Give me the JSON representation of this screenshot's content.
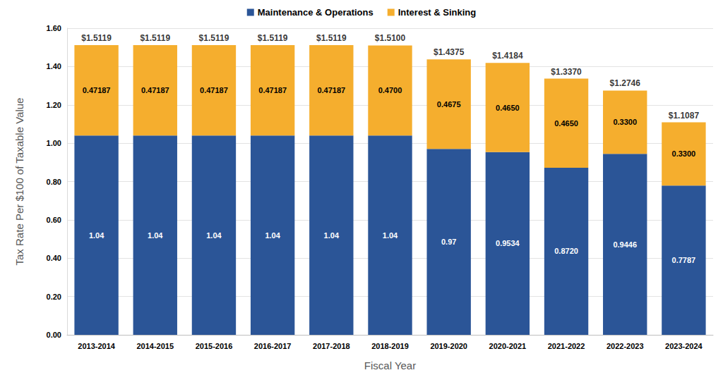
{
  "chart_data": {
    "type": "bar",
    "stacked": true,
    "data_labels": true,
    "grid": true,
    "legend": "top",
    "x_label": "Fiscal Year",
    "y_label": "Tax Rate Per $100 of Taxable Value",
    "categories": [
      "2013-2014",
      "2014-2015",
      "2015-2016",
      "2016-2017",
      "2017-2018",
      "2018-2019",
      "2019-2020",
      "2020-2021",
      "2021-2022",
      "2022-2023",
      "2023-2024"
    ],
    "series": [
      {
        "name": "Maintenance & Operations",
        "color": "#2B5597",
        "values": [
          1.04,
          1.04,
          1.04,
          1.04,
          1.04,
          1.04,
          0.97,
          0.9534,
          0.872,
          0.9446,
          0.7787
        ],
        "value_labels": [
          "1.04",
          "1.04",
          "1.04",
          "1.04",
          "1.04",
          "1.04",
          "0.97",
          "0.9534",
          "0.8720",
          "0.9446",
          "0.7787"
        ]
      },
      {
        "name": "Interest & Sinking",
        "color": "#F5AE2E",
        "values": [
          0.47187,
          0.47187,
          0.47187,
          0.47187,
          0.47187,
          0.47,
          0.4675,
          0.465,
          0.465,
          0.33,
          0.33
        ],
        "value_labels": [
          "0.47187",
          "0.47187",
          "0.47187",
          "0.47187",
          "0.47187",
          "0.4700",
          "0.4675",
          "0.4650",
          "0.4650",
          "0.3300",
          "0.3300"
        ]
      }
    ],
    "totals": [
      1.5119,
      1.5119,
      1.5119,
      1.5119,
      1.5119,
      1.51,
      1.4375,
      1.4184,
      1.337,
      1.2746,
      1.1087
    ],
    "total_labels": [
      "$1.5119",
      "$1.5119",
      "$1.5119",
      "$1.5119",
      "$1.5119",
      "$1.5100",
      "$1.4375",
      "$1.4184",
      "$1.3370",
      "$1.2746",
      "$1.1087"
    ],
    "ylim": [
      0,
      1.6
    ],
    "yticks": [
      {
        "value": 0,
        "label": "0.00"
      },
      {
        "value": 0.2,
        "label": "0.20"
      },
      {
        "value": 0.4,
        "label": "0.40"
      },
      {
        "value": 0.6,
        "label": "0.60"
      },
      {
        "value": 0.8,
        "label": "0.80"
      },
      {
        "value": 1.0,
        "label": "1.00"
      },
      {
        "value": 1.2,
        "label": "1.20"
      },
      {
        "value": 1.4,
        "label": "1.40"
      },
      {
        "value": 1.6,
        "label": "1.60"
      }
    ]
  }
}
